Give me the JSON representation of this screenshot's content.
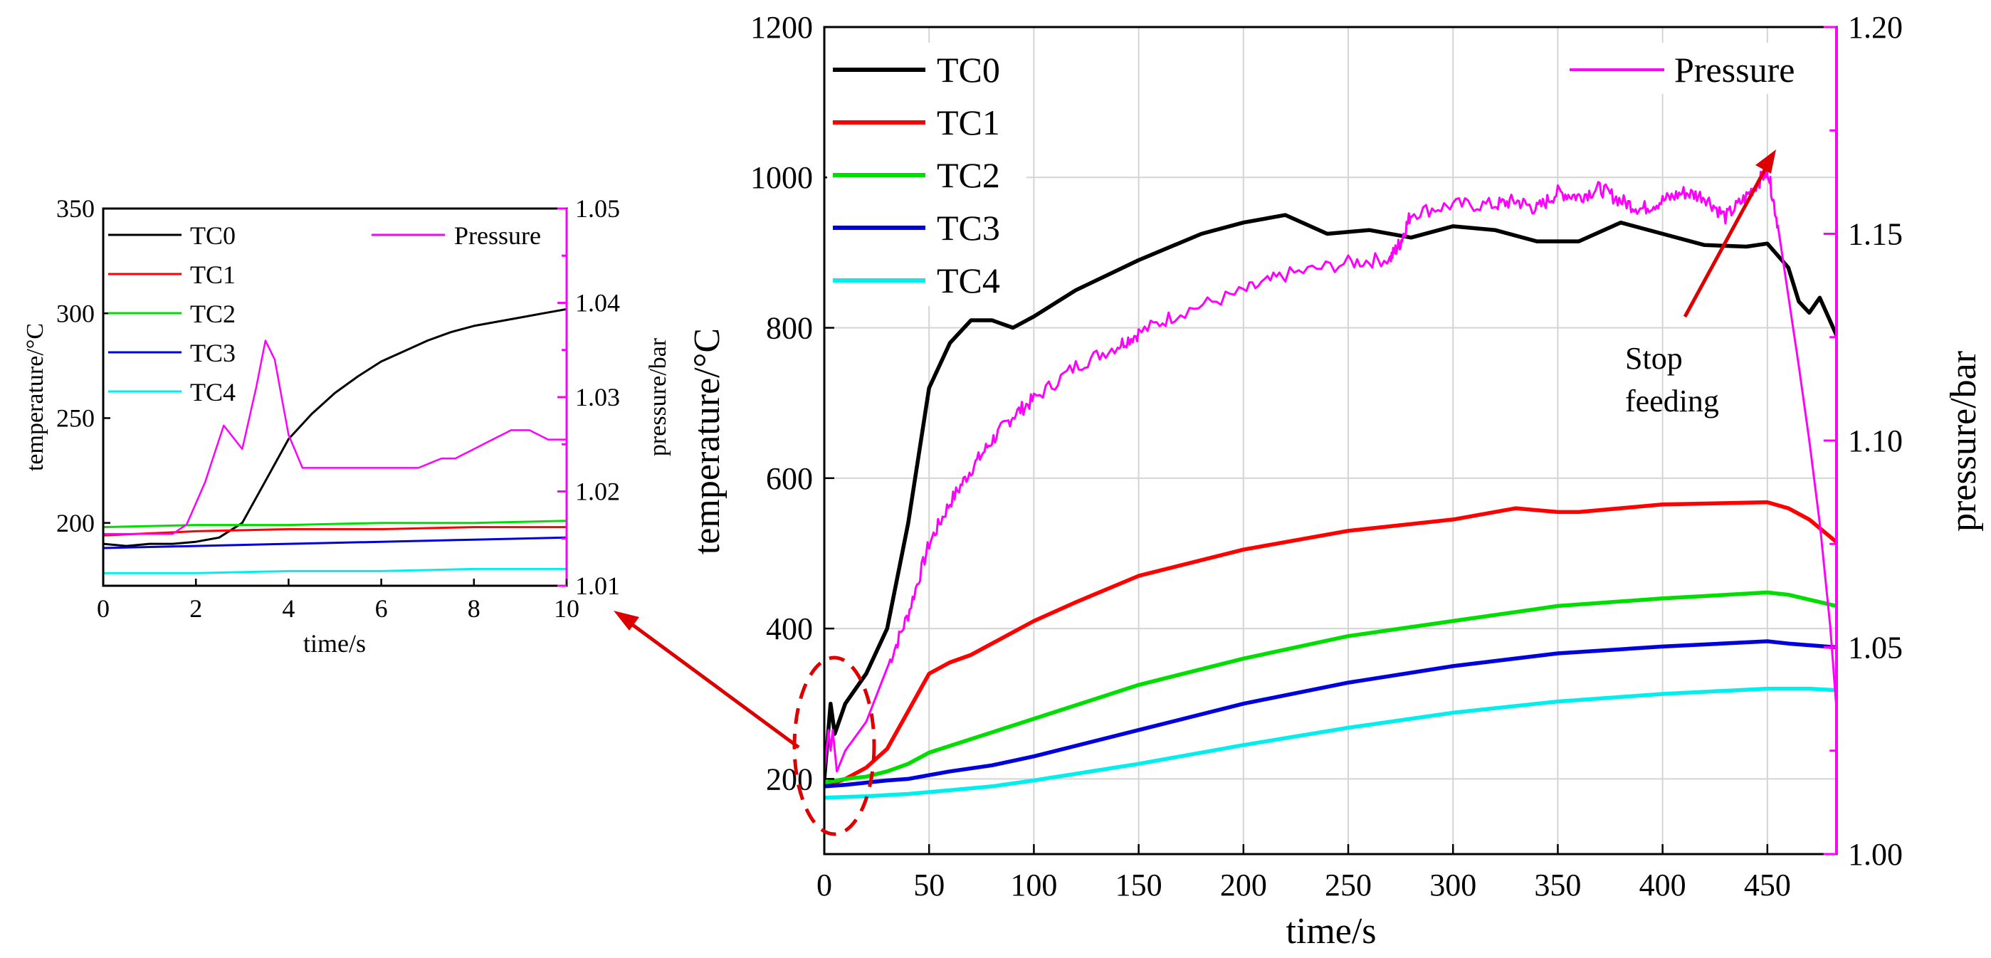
{
  "chart_data": [
    {
      "id": "inset",
      "type": "line",
      "xlabel": "time/s",
      "ylabel": "temperature/°C",
      "y2label": "pressure/bar",
      "xlim": [
        0,
        10
      ],
      "ylim": [
        170,
        350
      ],
      "y2lim": [
        1.01,
        1.05
      ],
      "xticks": [
        0,
        2,
        4,
        6,
        8,
        10
      ],
      "yticks": [
        200,
        250,
        300,
        350
      ],
      "y2ticks": [
        1.01,
        1.02,
        1.03,
        1.04,
        1.05
      ],
      "grid": false,
      "legend": "top-left",
      "series": [
        {
          "name": "TC0",
          "axis": "left",
          "color": "#000000",
          "x": [
            0,
            0.5,
            1,
            1.5,
            2,
            2.5,
            3,
            3.5,
            4,
            4.5,
            5,
            5.5,
            6,
            6.5,
            7,
            7.5,
            8,
            8.5,
            9,
            9.5,
            10
          ],
          "values": [
            190,
            189,
            190,
            190,
            191,
            193,
            200,
            220,
            240,
            252,
            262,
            270,
            277,
            282,
            287,
            291,
            294,
            296,
            298,
            300,
            302
          ]
        },
        {
          "name": "TC1",
          "axis": "left",
          "color": "#ff0000",
          "x": [
            0,
            2,
            4,
            6,
            8,
            10
          ],
          "values": [
            194,
            196,
            197,
            197,
            198,
            198
          ]
        },
        {
          "name": "TC2",
          "axis": "left",
          "color": "#00dd00",
          "x": [
            0,
            2,
            4,
            6,
            8,
            10
          ],
          "values": [
            198,
            199,
            199,
            200,
            200,
            201
          ]
        },
        {
          "name": "TC3",
          "axis": "left",
          "color": "#0000dd",
          "x": [
            0,
            2,
            4,
            6,
            8,
            10
          ],
          "values": [
            188,
            189,
            190,
            191,
            192,
            193
          ]
        },
        {
          "name": "TC4",
          "axis": "left",
          "color": "#00eeee",
          "x": [
            0,
            2,
            4,
            6,
            8,
            10
          ],
          "values": [
            176,
            176,
            177,
            177,
            178,
            178
          ]
        },
        {
          "name": "Pressure",
          "axis": "right",
          "color": "#ff00ff",
          "x": [
            0,
            0.5,
            1,
            1.5,
            1.8,
            2.2,
            2.6,
            3.0,
            3.3,
            3.5,
            3.7,
            4.0,
            4.3,
            4.8,
            5.3,
            5.8,
            6.3,
            6.8,
            7.3,
            7.6,
            8.0,
            8.4,
            8.8,
            9.2,
            9.6,
            10
          ],
          "values": [
            1.0155,
            1.0155,
            1.0155,
            1.0155,
            1.0165,
            1.021,
            1.027,
            1.0245,
            1.031,
            1.036,
            1.034,
            1.026,
            1.0225,
            1.0225,
            1.0225,
            1.0225,
            1.0225,
            1.0225,
            1.0235,
            1.0235,
            1.0245,
            1.0255,
            1.0265,
            1.0265,
            1.0255,
            1.0255
          ]
        }
      ]
    },
    {
      "id": "main",
      "type": "line",
      "xlabel": "time/s",
      "ylabel": "temperature/°C",
      "y2label": "pressure/bar",
      "xlim": [
        0,
        483
      ],
      "ylim": [
        100,
        1200
      ],
      "y2lim": [
        1.0,
        1.2
      ],
      "xticks": [
        0,
        50,
        100,
        150,
        200,
        250,
        300,
        350,
        400,
        450
      ],
      "yticks": [
        200,
        400,
        600,
        800,
        1000,
        1200
      ],
      "y2ticks": [
        1.0,
        1.05,
        1.1,
        1.15,
        1.2
      ],
      "grid": true,
      "legend": "top-left",
      "series": [
        {
          "name": "TC0",
          "axis": "left",
          "color": "#000000",
          "x": [
            0,
            3,
            5,
            10,
            20,
            30,
            40,
            50,
            60,
            70,
            80,
            90,
            100,
            120,
            150,
            180,
            200,
            220,
            240,
            260,
            280,
            300,
            320,
            340,
            360,
            380,
            400,
            420,
            440,
            450,
            460,
            465,
            470,
            475,
            483
          ],
          "values": [
            200,
            300,
            260,
            300,
            340,
            400,
            540,
            720,
            780,
            810,
            810,
            800,
            815,
            850,
            890,
            925,
            940,
            950,
            925,
            930,
            920,
            935,
            930,
            915,
            915,
            940,
            925,
            910,
            908,
            912,
            880,
            835,
            820,
            840,
            790
          ]
        },
        {
          "name": "TC1",
          "axis": "left",
          "color": "#ff0000",
          "x": [
            0,
            10,
            20,
            30,
            40,
            50,
            60,
            70,
            80,
            100,
            120,
            150,
            200,
            250,
            300,
            330,
            350,
            360,
            400,
            450,
            460,
            470,
            483
          ],
          "values": [
            190,
            200,
            215,
            240,
            290,
            340,
            355,
            365,
            380,
            410,
            435,
            470,
            505,
            530,
            545,
            560,
            555,
            555,
            565,
            568,
            560,
            545,
            515
          ]
        },
        {
          "name": "TC2",
          "axis": "left",
          "color": "#00dd00",
          "x": [
            0,
            10,
            20,
            30,
            40,
            50,
            100,
            150,
            200,
            250,
            300,
            350,
            400,
            450,
            460,
            483
          ],
          "values": [
            195,
            200,
            203,
            210,
            220,
            235,
            280,
            325,
            360,
            390,
            410,
            430,
            440,
            448,
            445,
            430
          ]
        },
        {
          "name": "TC3",
          "axis": "left",
          "color": "#0000dd",
          "x": [
            0,
            10,
            20,
            30,
            40,
            50,
            60,
            80,
            100,
            150,
            200,
            250,
            300,
            350,
            400,
            450,
            460,
            483
          ],
          "values": [
            190,
            192,
            195,
            198,
            200,
            205,
            210,
            218,
            230,
            265,
            300,
            328,
            350,
            367,
            376,
            383,
            380,
            375
          ]
        },
        {
          "name": "TC4",
          "axis": "left",
          "color": "#00eeee",
          "x": [
            0,
            10,
            20,
            40,
            60,
            80,
            100,
            150,
            200,
            250,
            300,
            350,
            400,
            450,
            470,
            483
          ],
          "values": [
            175,
            176,
            177,
            180,
            185,
            190,
            198,
            220,
            245,
            268,
            288,
            303,
            313,
            320,
            320,
            318
          ]
        },
        {
          "name": "Pressure",
          "axis": "right",
          "color": "#ff00ff",
          "x": [
            0,
            2,
            3,
            4,
            6,
            10,
            20,
            30,
            40,
            50,
            60,
            70,
            80,
            90,
            100,
            120,
            140,
            150,
            170,
            200,
            220,
            250,
            270,
            275,
            280,
            300,
            320,
            330,
            340,
            350,
            360,
            370,
            380,
            390,
            400,
            410,
            420,
            430,
            440,
            448,
            450,
            455,
            460,
            465,
            470,
            475,
            480,
            483
          ],
          "values": [
            1.02,
            1.03,
            1.025,
            1.03,
            1.02,
            1.025,
            1.032,
            1.045,
            1.058,
            1.075,
            1.085,
            1.093,
            1.1,
            1.106,
            1.11,
            1.118,
            1.123,
            1.126,
            1.131,
            1.136,
            1.14,
            1.143,
            1.144,
            1.148,
            1.155,
            1.157,
            1.157,
            1.158,
            1.156,
            1.16,
            1.159,
            1.161,
            1.158,
            1.156,
            1.158,
            1.16,
            1.159,
            1.154,
            1.159,
            1.164,
            1.166,
            1.152,
            1.135,
            1.118,
            1.1,
            1.08,
            1.055,
            1.035
          ]
        }
      ]
    }
  ],
  "annotation": {
    "line1": "Stop",
    "line2": "feeding"
  }
}
